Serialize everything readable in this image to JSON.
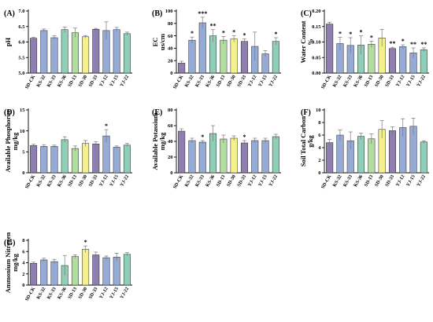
{
  "categories": [
    "SD-CK",
    "KS-32",
    "KS-33",
    "KS-36",
    "SD-13",
    "SD-30",
    "SD-33",
    "YJ-12",
    "YJ-15",
    "YJ-22"
  ],
  "colors": {
    "purple": "#8e7fb0",
    "blue": "#95abd6",
    "green": "#8ecfb8",
    "lightgreen": "#b3dda0",
    "yellow": "#f5f08a",
    "bar_colors": [
      "#8e7fb0",
      "#95abd6",
      "#95abd6",
      "#8ecfb8",
      "#b3dda0",
      "#f5f08a",
      "#8e7fb0",
      "#95abd6",
      "#95abd6",
      "#8ecfb8"
    ]
  },
  "chart_data": [
    {
      "type": "bar",
      "panel": "(A)",
      "ylabel": "pH",
      "categories": [
        "SD-CK",
        "KS-32",
        "KS-33",
        "KS-36",
        "SD-13",
        "SD-30",
        "SD-33",
        "YJ-12",
        "YJ-15",
        "YJ-22"
      ],
      "values": [
        6.12,
        6.37,
        6.14,
        6.4,
        6.3,
        6.17,
        6.41,
        6.37,
        6.4,
        6.27
      ],
      "errors": [
        0.03,
        0.05,
        0.06,
        0.08,
        0.15,
        0.04,
        0.03,
        0.28,
        0.07,
        0.05
      ],
      "significance": [
        "",
        "",
        "",
        "",
        "",
        "",
        "",
        "",
        "",
        ""
      ],
      "ylim": [
        5.0,
        7.0
      ],
      "yticks": [
        "5.0",
        "5.5",
        "6.0",
        "6.5",
        "7.0"
      ]
    },
    {
      "type": "bar",
      "panel": "(B)",
      "ylabel": "EC",
      "yunit": "us/cm",
      "categories": [
        "SD-CK",
        "KS-32",
        "KS-33",
        "KS-36",
        "SD-13",
        "SD-30",
        "SD-33",
        "YJ-12",
        "YJ-15",
        "YJ-22"
      ],
      "values": [
        16,
        53,
        81,
        60,
        53,
        55,
        51,
        43,
        31,
        51
      ],
      "errors": [
        3,
        5,
        9,
        10,
        6,
        5,
        4,
        23,
        5,
        6
      ],
      "significance": [
        "",
        "*",
        "***",
        "**",
        "*",
        "*",
        "*",
        "",
        "",
        "*"
      ],
      "ylim": [
        0,
        100
      ],
      "yticks": [
        "0",
        "20",
        "40",
        "60",
        "80",
        "100"
      ]
    },
    {
      "type": "bar",
      "panel": "(C)",
      "ylabel": "Water Content",
      "yunit": "%",
      "categories": [
        "SD-CK",
        "KS-32",
        "KS-33",
        "KS-36",
        "SD-13",
        "SD-30",
        "SD-33",
        "YJ-12",
        "YJ-15",
        "YJ-22"
      ],
      "values": [
        0.158,
        0.095,
        0.089,
        0.09,
        0.093,
        0.113,
        0.079,
        0.085,
        0.065,
        0.075
      ],
      "errors": [
        0.006,
        0.02,
        0.025,
        0.03,
        0.01,
        0.028,
        0.004,
        0.006,
        0.016,
        0.006
      ],
      "significance": [
        "",
        "*",
        "*",
        "*",
        "*",
        "",
        "**",
        "*",
        "**",
        "**"
      ],
      "ylim": [
        0,
        0.2
      ],
      "yticks": [
        "0.00",
        "0.05",
        "0.10",
        "0.15",
        "0.20"
      ]
    },
    {
      "type": "bar",
      "panel": "(D)",
      "ylabel": "Available Phosphorus",
      "yunit": "mg/kg",
      "categories": [
        "SD-CK",
        "KS-32",
        "KS-33",
        "KS-36",
        "SD-13",
        "SD-30",
        "SD-33",
        "YJ-12",
        "YJ-15",
        "YJ-22"
      ],
      "values": [
        6.5,
        6.3,
        6.3,
        7.9,
        5.8,
        7.0,
        6.9,
        8.8,
        6.1,
        6.6
      ],
      "errors": [
        0.3,
        0.4,
        0.3,
        0.7,
        0.6,
        0.7,
        0.5,
        1.5,
        0.3,
        0.4
      ],
      "significance": [
        "",
        "",
        "",
        "",
        "",
        "",
        "",
        "*",
        "",
        ""
      ],
      "ylim": [
        0,
        15
      ],
      "yticks": [
        "0",
        "5",
        "10",
        "15"
      ]
    },
    {
      "type": "bar",
      "panel": "(E)",
      "ylabel": "Available Potassium",
      "yunit": "mg/kg",
      "categories": [
        "SD-CK",
        "KS-32",
        "KS-33",
        "KS-36",
        "SD-13",
        "SD-30",
        "SD-33",
        "YJ-12",
        "YJ-15",
        "YJ-22"
      ],
      "values": [
        53,
        41,
        39,
        50,
        43,
        44,
        38,
        41,
        41,
        46
      ],
      "errors": [
        3,
        3,
        2,
        10,
        5,
        3,
        3,
        3,
        3,
        3
      ],
      "significance": [
        "",
        "",
        "*",
        "",
        "",
        "",
        "*",
        "",
        "",
        ""
      ],
      "ylim": [
        0,
        80
      ],
      "yticks": [
        "0",
        "20",
        "40",
        "60",
        "80"
      ]
    },
    {
      "type": "bar",
      "panel": "(F)",
      "ylabel": "Soil Total Carbon",
      "yunit": "g/kg",
      "categories": [
        "SD-CK",
        "KS-32",
        "KS-33",
        "KS-36",
        "SD-13",
        "SD-30",
        "SD-33",
        "YJ-12",
        "YJ-15",
        "YJ-22"
      ],
      "values": [
        4.8,
        6.0,
        5.1,
        5.8,
        5.4,
        6.9,
        6.7,
        7.2,
        7.4,
        4.9
      ],
      "errors": [
        0.5,
        0.8,
        1.4,
        0.5,
        0.8,
        1.4,
        0.6,
        1.4,
        1.3,
        0.2
      ],
      "significance": [
        "",
        "",
        "",
        "",
        "",
        "",
        "",
        "",
        "",
        ""
      ],
      "ylim": [
        0,
        10
      ],
      "yticks": [
        "0",
        "2",
        "4",
        "6",
        "8",
        "10"
      ]
    },
    {
      "type": "bar",
      "panel": "(G)",
      "ylabel": "Ammonium Nitrogen",
      "yunit": "mg/kg",
      "categories": [
        "SD-CK",
        "KS-32",
        "KS-33",
        "KS-36",
        "SD-13",
        "SD-30",
        "SD-33",
        "YJ-12",
        "YJ-15",
        "YJ-22"
      ],
      "values": [
        3.9,
        4.5,
        4.2,
        3.5,
        5.1,
        6.4,
        5.4,
        4.9,
        5.0,
        5.5
      ],
      "errors": [
        0.2,
        0.3,
        0.4,
        1.8,
        0.3,
        0.6,
        0.5,
        0.3,
        0.7,
        0.3
      ],
      "significance": [
        "",
        "",
        "",
        "",
        "",
        "*",
        "",
        "",
        "",
        ""
      ],
      "ylim": [
        0,
        8
      ],
      "yticks": [
        "0",
        "2",
        "4",
        "6",
        "8"
      ]
    }
  ]
}
